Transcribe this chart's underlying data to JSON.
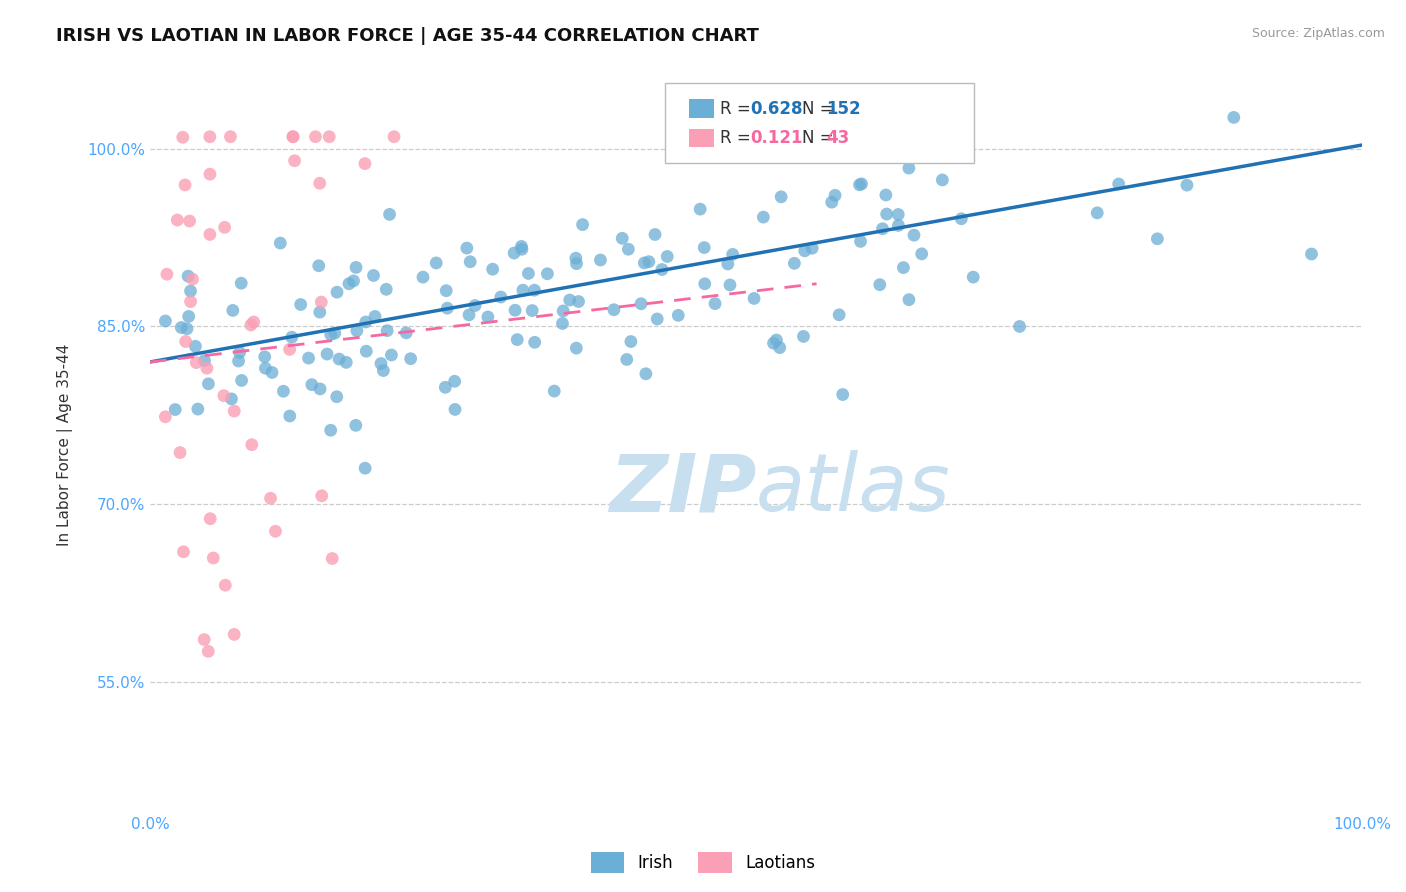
{
  "title": "IRISH VS LAOTIAN IN LABOR FORCE | AGE 35-44 CORRELATION CHART",
  "source_text": "Source: ZipAtlas.com",
  "ylabel": "In Labor Force | Age 35-44",
  "xlim": [
    0.0,
    1.0
  ],
  "ylim": [
    0.44,
    1.06
  ],
  "yticks": [
    0.55,
    0.7,
    0.85,
    1.0
  ],
  "ytick_labels": [
    "55.0%",
    "70.0%",
    "85.0%",
    "100.0%"
  ],
  "xticks": [
    0.0,
    1.0
  ],
  "xtick_labels": [
    "0.0%",
    "100.0%"
  ],
  "irish_R": 0.628,
  "irish_N": 152,
  "laotian_R": 0.121,
  "laotian_N": 43,
  "irish_color": "#6baed6",
  "laotian_color": "#fa9fb5",
  "irish_line_color": "#2171b5",
  "laotian_line_color": "#f768a1",
  "title_fontsize": 13,
  "axis_label_fontsize": 11,
  "tick_fontsize": 11,
  "background_color": "#ffffff",
  "grid_color": "#cccccc",
  "watermark_color": "#c8dff0"
}
